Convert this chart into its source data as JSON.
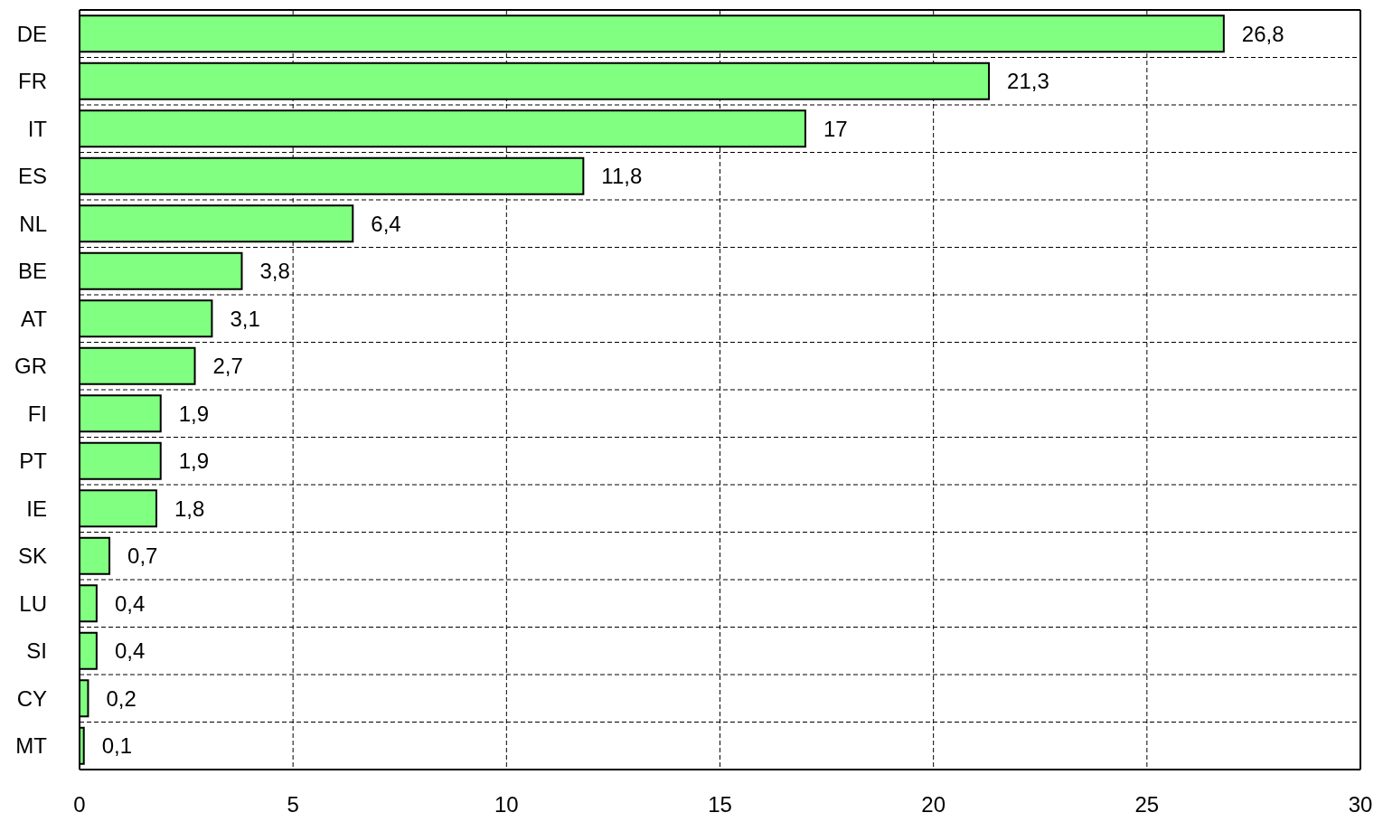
{
  "chart_data": {
    "type": "bar",
    "orientation": "horizontal",
    "categories": [
      "DE",
      "FR",
      "IT",
      "ES",
      "NL",
      "BE",
      "AT",
      "GR",
      "FI",
      "PT",
      "IE",
      "SK",
      "LU",
      "SI",
      "CY",
      "MT"
    ],
    "values": [
      26.8,
      21.3,
      17,
      11.8,
      6.4,
      3.8,
      3.1,
      2.7,
      1.9,
      1.9,
      1.8,
      0.7,
      0.4,
      0.4,
      0.2,
      0.1
    ],
    "value_labels": [
      "26,8",
      "21,3",
      "17",
      "11,8",
      "6,4",
      "3,8",
      "3,1",
      "2,7",
      "1,9",
      "1,9",
      "1,8",
      "0,7",
      "0,4",
      "0,4",
      "0,2",
      "0,1"
    ],
    "color": "#80ff80",
    "xlim": [
      0,
      30
    ],
    "xticks": [
      0,
      5,
      10,
      15,
      20,
      25,
      30
    ],
    "grid": true
  }
}
